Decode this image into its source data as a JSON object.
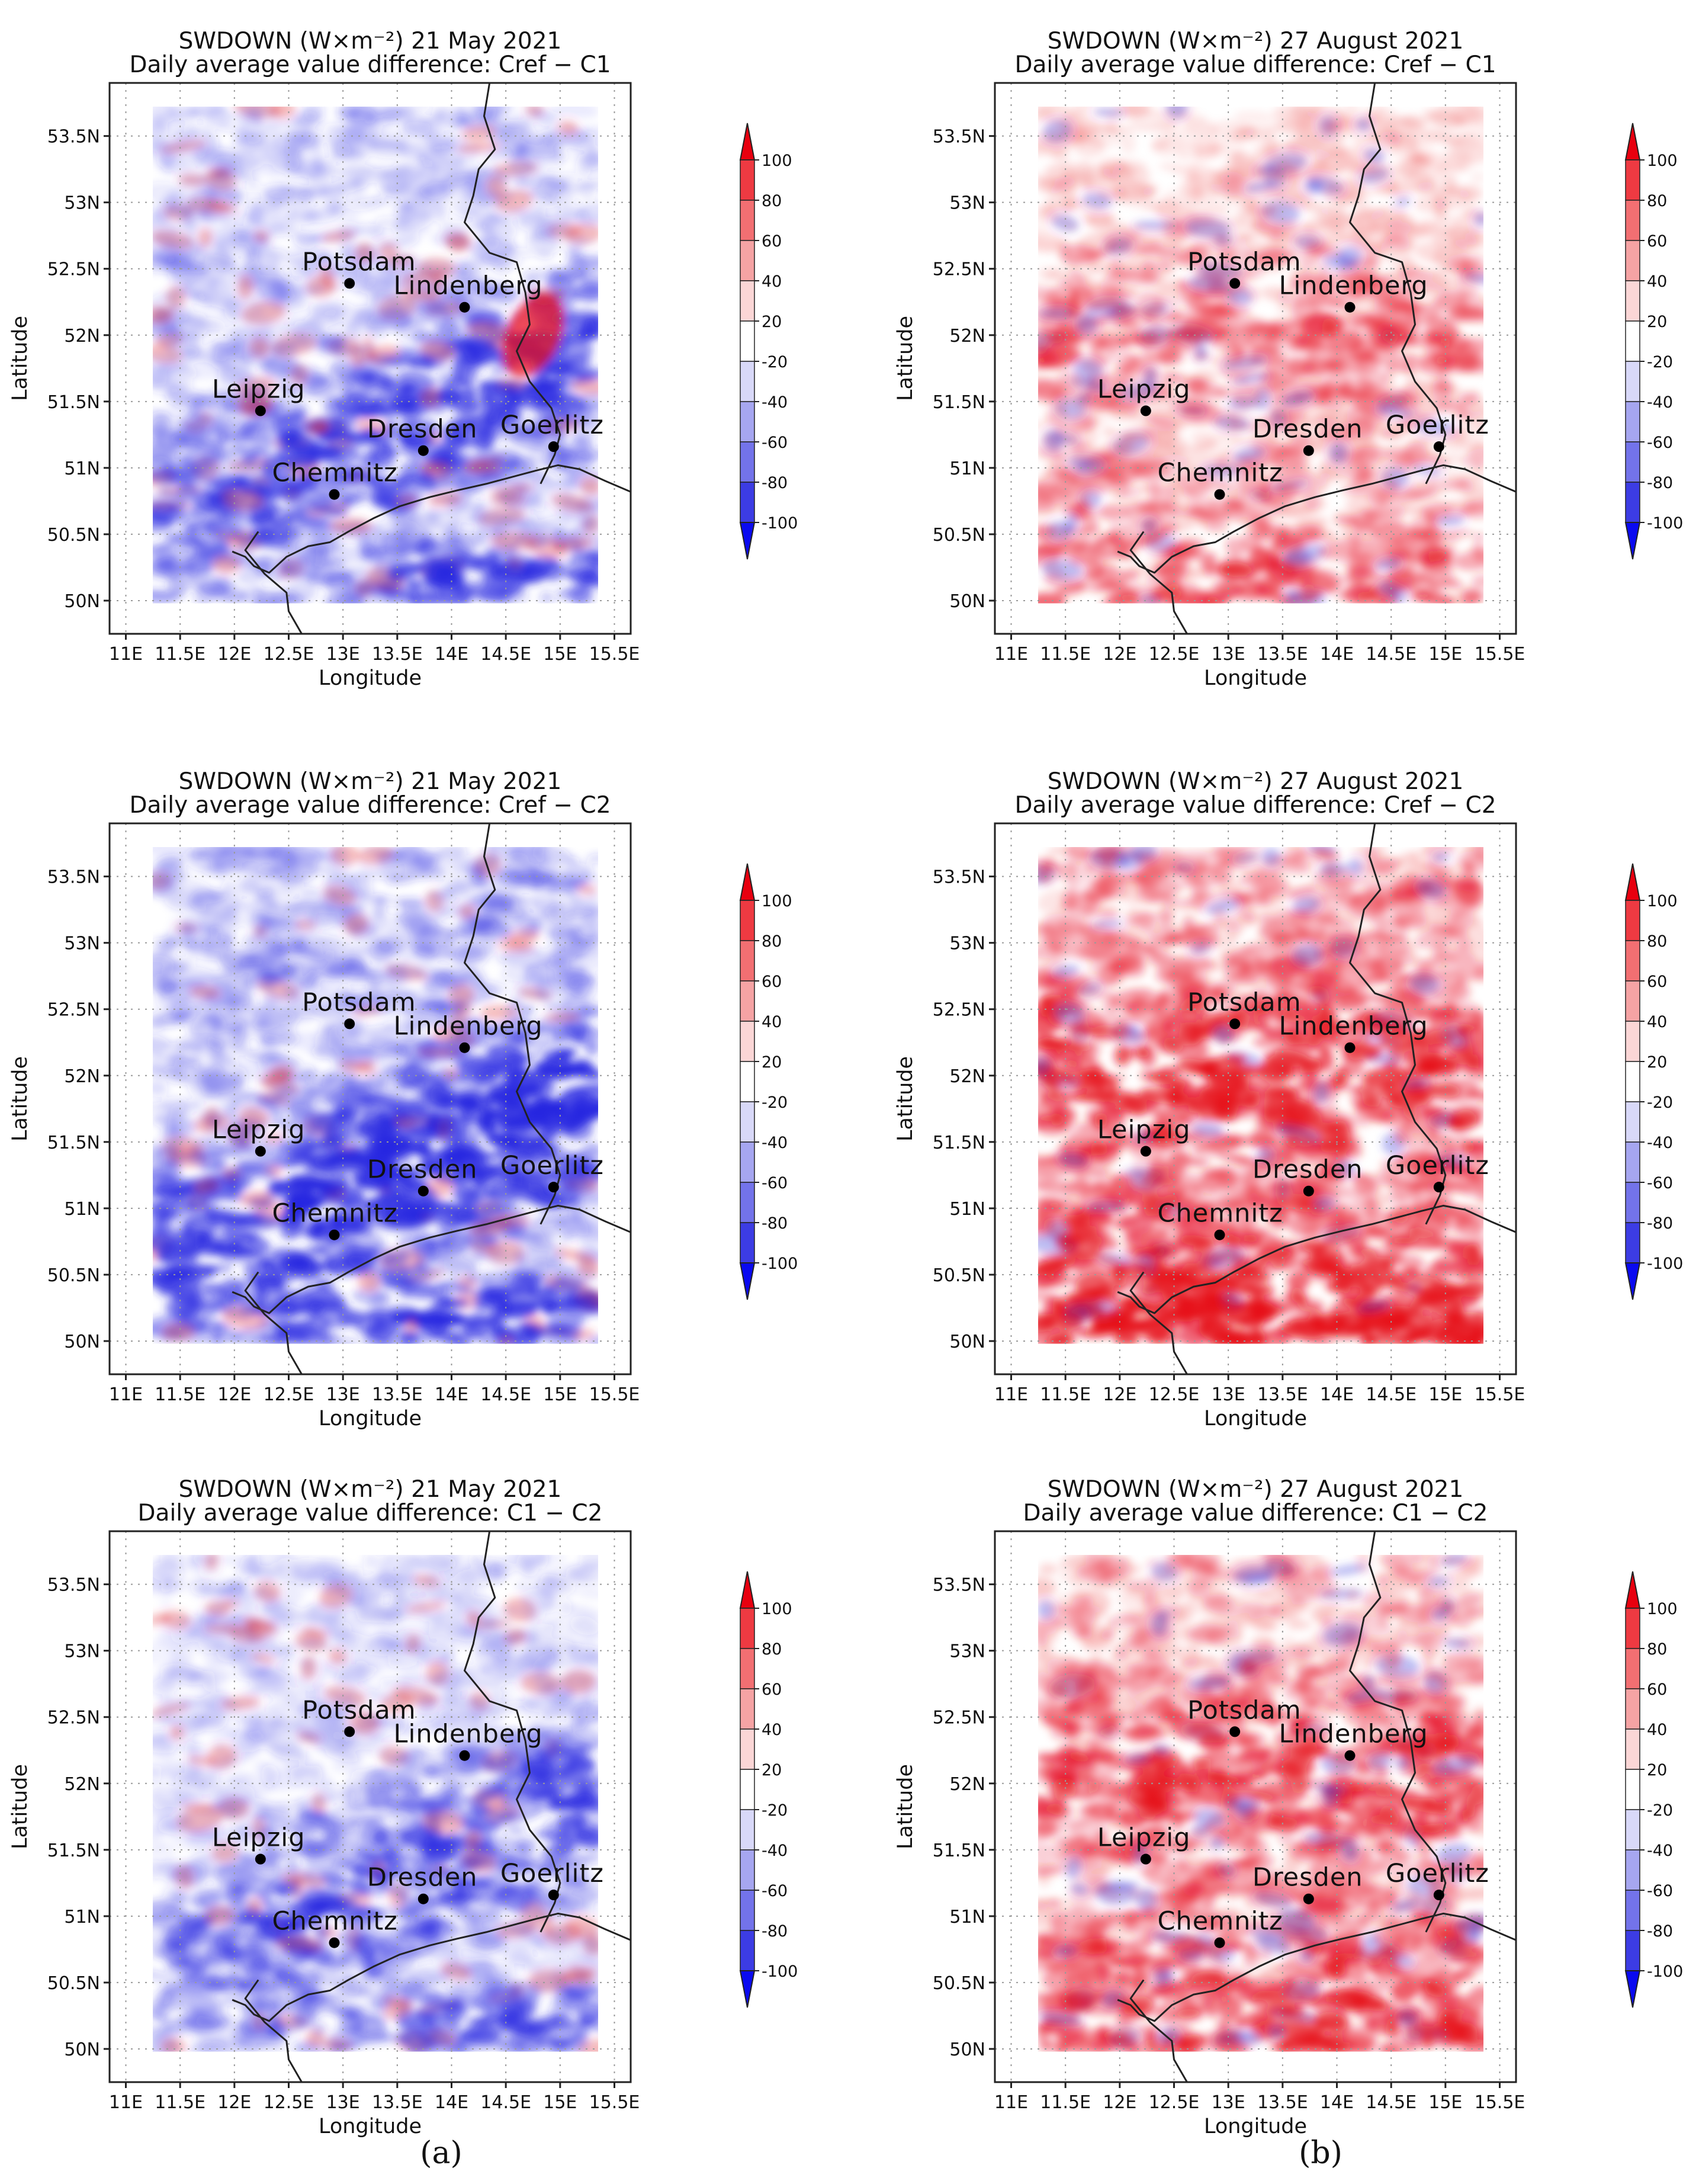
{
  "figure": {
    "panels": [
      {
        "id": "a1",
        "column": "a",
        "title_line1": "SWDOWN (W×m⁻²) 21 May 2021",
        "title_line2": "Daily average value difference: Cref − C1",
        "tone": "blue",
        "intensity": 0.7,
        "extra_red_patch": true
      },
      {
        "id": "b1",
        "column": "b",
        "title_line1": "SWDOWN (W×m⁻²) 27 August 2021",
        "title_line2": "Daily average value difference: Cref − C1",
        "tone": "red",
        "intensity": 0.45,
        "extra_red_patch": false
      },
      {
        "id": "a2",
        "column": "a",
        "title_line1": "SWDOWN (W×m⁻²) 21 May 2021",
        "title_line2": "Daily average value difference: Cref − C2",
        "tone": "blue",
        "intensity": 0.95,
        "extra_red_patch": false
      },
      {
        "id": "b2",
        "column": "b",
        "title_line1": "SWDOWN (W×m⁻²) 27 August 2021",
        "title_line2": "Daily average value difference: Cref − C2",
        "tone": "red",
        "intensity": 0.95,
        "extra_red_patch": false
      },
      {
        "id": "a3",
        "column": "a",
        "title_line1": "SWDOWN (W×m⁻²) 21 May 2021",
        "title_line2": "Daily average value difference: C1 − C2",
        "tone": "blue",
        "intensity": 0.55,
        "extra_red_patch": false
      },
      {
        "id": "b3",
        "column": "b",
        "title_line1": "SWDOWN (W×m⁻²) 27 August 2021",
        "title_line2": "Daily average value difference: C1 − C2",
        "tone": "red",
        "intensity": 0.7,
        "extra_red_patch": false
      }
    ],
    "x_axis": {
      "label": "Longitude",
      "range": [
        10.85,
        15.65
      ],
      "ticks": [
        11,
        11.5,
        12,
        12.5,
        13,
        13.5,
        14,
        14.5,
        15,
        15.5
      ],
      "tick_labels": [
        "11E",
        "11.5E",
        "12E",
        "12.5E",
        "13E",
        "13.5E",
        "14E",
        "14.5E",
        "15E",
        "15.5E"
      ]
    },
    "y_axis": {
      "label": "Latitude",
      "range": [
        49.75,
        53.9
      ],
      "ticks": [
        50,
        50.5,
        51,
        51.5,
        52,
        52.5,
        53,
        53.5
      ],
      "tick_labels": [
        "50N",
        "50.5N",
        "51N",
        "51.5N",
        "52N",
        "52.5N",
        "53N",
        "53.5N"
      ]
    },
    "cities": [
      {
        "name": "Potsdam",
        "lon": 13.06,
        "lat": 52.39
      },
      {
        "name": "Lindenberg",
        "lon": 14.12,
        "lat": 52.21
      },
      {
        "name": "Leipzig",
        "lon": 12.24,
        "lat": 51.43
      },
      {
        "name": "Dresden",
        "lon": 13.74,
        "lat": 51.13
      },
      {
        "name": "Goerlitz",
        "lon": 14.94,
        "lat": 51.16
      },
      {
        "name": "Chemnitz",
        "lon": 12.92,
        "lat": 50.8
      }
    ],
    "colorbar": {
      "levels": [
        -100,
        -80,
        -60,
        -40,
        -20,
        20,
        40,
        60,
        80,
        100
      ],
      "labels": [
        "100",
        "80",
        "60",
        "40",
        "20",
        "-20",
        "-40",
        "-60",
        "-80",
        "-100"
      ],
      "colors": [
        "#e8000f",
        "#ee3a42",
        "#f26f72",
        "#f5a3a4",
        "#fbd6d6",
        "#ffffff",
        "#d8d8f8",
        "#a6a6f0",
        "#7373ea",
        "#3c3ce4",
        "#0a0af0"
      ]
    },
    "captions": [
      "(a)",
      "(b)"
    ]
  }
}
